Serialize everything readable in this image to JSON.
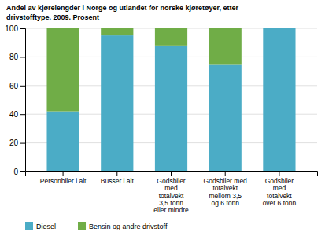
{
  "chart_data": {
    "type": "bar",
    "stacked": true,
    "title": "Andel av kjørelengder i Norge og utlandet for norske kjøretøyer, etter\ndrivstofftype. 2009. Prosent",
    "categories": [
      "Personbiler i alt",
      "Busser i alt",
      "Godsbiler\nmed\ntotalvekt\n3,5 tonn\neller mindre",
      "Godsbiler med\ntotalvekt\nmellom 3,5\nog 6 tonn",
      "Godsbiler\nmed\ntotalvekt\nover 6 tonn"
    ],
    "series": [
      {
        "name": "Diesel",
        "color": "#4bacc6",
        "values": [
          42,
          95,
          88,
          75,
          100
        ]
      },
      {
        "name": "Bensin og andre drivstoff",
        "color": "#70ad47",
        "values": [
          58,
          5,
          12,
          25,
          0
        ]
      }
    ],
    "ylim": [
      0,
      100
    ],
    "yticks": [
      0,
      20,
      40,
      60,
      80,
      100
    ],
    "grid": true,
    "legend": "bottom"
  }
}
